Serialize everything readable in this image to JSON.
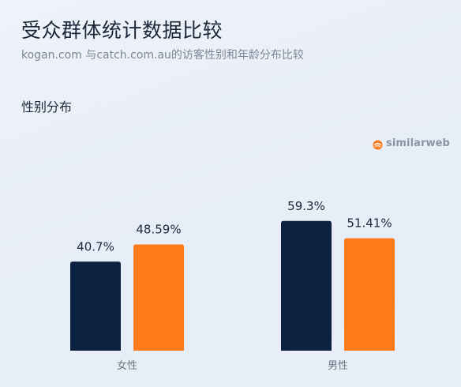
{
  "header": {
    "title": "受众群体统计数据比较",
    "subtitle": "kogan.com 与catch.com.au的访客性别和年龄分布比较"
  },
  "section": {
    "title": "性别分布"
  },
  "brand": {
    "name": "similarweb",
    "icon": "similarweb-logo-icon"
  },
  "colors": {
    "kogan": "#0b2340",
    "catch": "#ff7a1a"
  },
  "chart_data": {
    "type": "bar",
    "categories": [
      "女性",
      "男性"
    ],
    "series": [
      {
        "values": [
          40.7,
          59.3
        ],
        "labels": [
          "40.7%",
          "59.3%"
        ],
        "color": "#0b2340"
      },
      {
        "values": [
          48.59,
          51.41
        ],
        "labels": [
          "48.59%",
          "51.41%"
        ],
        "color": "#ff7a1a"
      }
    ],
    "title": "性别分布",
    "xlabel": "",
    "ylabel": "",
    "ylim": [
      0,
      65
    ],
    "grid": false,
    "legend": "none"
  }
}
